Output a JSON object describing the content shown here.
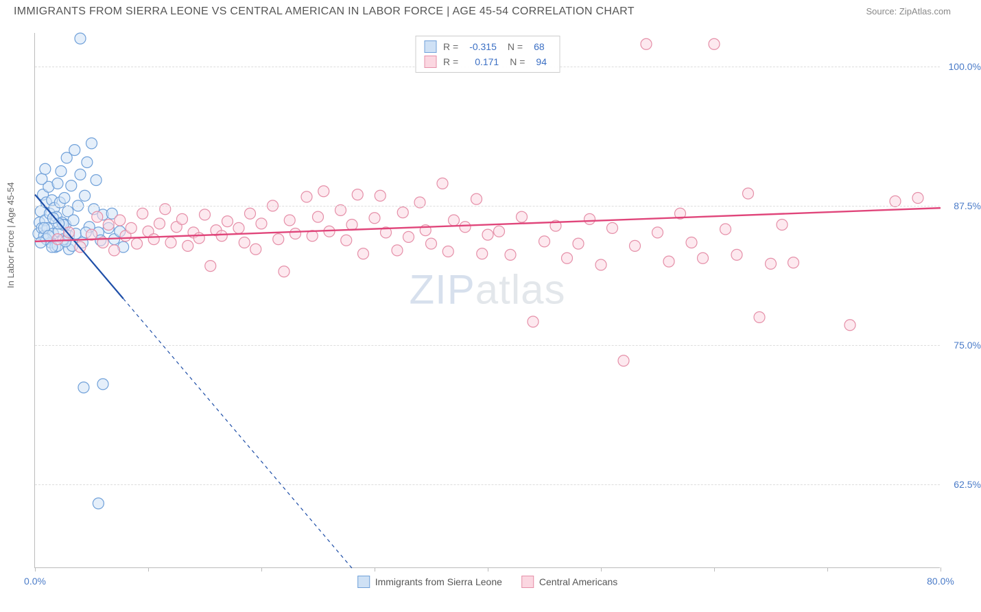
{
  "header": {
    "title": "IMMIGRANTS FROM SIERRA LEONE VS CENTRAL AMERICAN IN LABOR FORCE | AGE 45-54 CORRELATION CHART",
    "source": "Source: ZipAtlas.com"
  },
  "chart": {
    "type": "scatter",
    "ylabel": "In Labor Force | Age 45-54",
    "xlim": [
      0,
      80
    ],
    "ylim": [
      55,
      103
    ],
    "xtick_start": 0,
    "xtick_end": 80,
    "xtick_step_major": 10,
    "x_label_min": "0.0%",
    "x_label_max": "80.0%",
    "yticks": [
      {
        "v": 62.5,
        "label": "62.5%"
      },
      {
        "v": 75.0,
        "label": "75.0%"
      },
      {
        "v": 87.5,
        "label": "87.5%"
      },
      {
        "v": 100.0,
        "label": "100.0%"
      }
    ],
    "grid_color": "#dddddd",
    "axis_color": "#bbbbbb",
    "background_color": "#ffffff",
    "tick_label_color": "#4a7bc8",
    "marker_radius": 8,
    "marker_stroke_width": 1.2,
    "watermark": "ZIPatlas",
    "series": [
      {
        "id": "sierra_leone",
        "name": "Immigrants from Sierra Leone",
        "fill": "#cfe1f5",
        "stroke": "#6fa0d9",
        "fill_opacity": 0.55,
        "line_color": "#1f4fa8",
        "line_width": 2.2,
        "dash_extrapolate": "5,5",
        "R": "-0.315",
        "N": "68",
        "trend": {
          "x1": 0,
          "y1": 88.5,
          "x2": 28,
          "y2": 55,
          "solid_until_x": 7.8
        },
        "points": [
          [
            0.3,
            85
          ],
          [
            0.4,
            86
          ],
          [
            0.5,
            87
          ],
          [
            0.6,
            85.5
          ],
          [
            0.7,
            88.5
          ],
          [
            0.8,
            84.8
          ],
          [
            0.9,
            86.2
          ],
          [
            1.0,
            87.8
          ],
          [
            1.1,
            85.5
          ],
          [
            1.2,
            89.2
          ],
          [
            1.3,
            86.8
          ],
          [
            1.4,
            84.2
          ],
          [
            1.5,
            88
          ],
          [
            1.6,
            85
          ],
          [
            1.7,
            87.3
          ],
          [
            1.8,
            83.8
          ],
          [
            1.9,
            86.5
          ],
          [
            2.0,
            89.5
          ],
          [
            2.1,
            85.2
          ],
          [
            2.2,
            87.8
          ],
          [
            2.3,
            90.6
          ],
          [
            2.4,
            86
          ],
          [
            2.5,
            84.5
          ],
          [
            2.6,
            88.2
          ],
          [
            2.7,
            85.8
          ],
          [
            2.8,
            91.8
          ],
          [
            2.9,
            87
          ],
          [
            3.0,
            84.8
          ],
          [
            3.2,
            89.3
          ],
          [
            3.4,
            86.2
          ],
          [
            3.5,
            92.5
          ],
          [
            3.6,
            85
          ],
          [
            3.8,
            87.5
          ],
          [
            4.0,
            90.3
          ],
          [
            4.2,
            84.2
          ],
          [
            4.4,
            88.4
          ],
          [
            4.6,
            91.4
          ],
          [
            4.8,
            85.6
          ],
          [
            5.0,
            93.1
          ],
          [
            5.2,
            87.2
          ],
          [
            5.4,
            89.8
          ],
          [
            5.6,
            85.1
          ],
          [
            5.8,
            84.4
          ],
          [
            6.0,
            86.7
          ],
          [
            2.0,
            83.9
          ],
          [
            2.5,
            85.8
          ],
          [
            3.0,
            83.6
          ],
          [
            1.0,
            84.5
          ],
          [
            1.5,
            83.8
          ],
          [
            0.5,
            84.2
          ],
          [
            0.8,
            85.5
          ],
          [
            1.2,
            84.8
          ],
          [
            6.5,
            85.5
          ],
          [
            6.8,
            86.8
          ],
          [
            7.0,
            84.5
          ],
          [
            7.5,
            85.2
          ],
          [
            7.8,
            83.8
          ],
          [
            4.5,
            85.1
          ],
          [
            3.3,
            83.9
          ],
          [
            2.7,
            84.3
          ],
          [
            2.1,
            85.9
          ],
          [
            1.6,
            86.4
          ],
          [
            4.0,
            102.5
          ],
          [
            4.3,
            71.2
          ],
          [
            6.0,
            71.5
          ],
          [
            5.6,
            60.8
          ],
          [
            0.6,
            89.9
          ],
          [
            0.9,
            90.8
          ]
        ]
      },
      {
        "id": "central_american",
        "name": "Central Americans",
        "fill": "#fbd7e1",
        "stroke": "#e58fa8",
        "fill_opacity": 0.55,
        "line_color": "#e0457a",
        "line_width": 2.4,
        "R": "0.171",
        "N": "94",
        "trend": {
          "x1": 0,
          "y1": 84.3,
          "x2": 80,
          "y2": 87.3,
          "solid_until_x": 80
        },
        "points": [
          [
            2,
            84.5
          ],
          [
            3,
            85.1
          ],
          [
            4,
            83.8
          ],
          [
            5,
            84.9
          ],
          [
            5.5,
            86.5
          ],
          [
            6,
            84.2
          ],
          [
            6.5,
            85.8
          ],
          [
            7,
            83.5
          ],
          [
            7.5,
            86.2
          ],
          [
            8,
            84.8
          ],
          [
            8.5,
            85.5
          ],
          [
            9,
            84.1
          ],
          [
            9.5,
            86.8
          ],
          [
            10,
            85.2
          ],
          [
            10.5,
            84.5
          ],
          [
            11,
            85.9
          ],
          [
            11.5,
            87.2
          ],
          [
            12,
            84.2
          ],
          [
            12.5,
            85.6
          ],
          [
            13,
            86.3
          ],
          [
            13.5,
            83.9
          ],
          [
            14,
            85.1
          ],
          [
            14.5,
            84.6
          ],
          [
            15,
            86.7
          ],
          [
            15.5,
            82.1
          ],
          [
            16,
            85.3
          ],
          [
            16.5,
            84.8
          ],
          [
            17,
            86.1
          ],
          [
            18,
            85.5
          ],
          [
            18.5,
            84.2
          ],
          [
            19,
            86.8
          ],
          [
            19.5,
            83.6
          ],
          [
            20,
            85.9
          ],
          [
            21,
            87.5
          ],
          [
            21.5,
            84.5
          ],
          [
            22,
            81.6
          ],
          [
            22.5,
            86.2
          ],
          [
            23,
            85
          ],
          [
            24,
            88.3
          ],
          [
            24.5,
            84.8
          ],
          [
            25,
            86.5
          ],
          [
            25.5,
            88.8
          ],
          [
            26,
            85.2
          ],
          [
            27,
            87.1
          ],
          [
            27.5,
            84.4
          ],
          [
            28,
            85.8
          ],
          [
            28.5,
            88.5
          ],
          [
            29,
            83.2
          ],
          [
            30,
            86.4
          ],
          [
            30.5,
            88.4
          ],
          [
            31,
            85.1
          ],
          [
            32,
            83.5
          ],
          [
            32.5,
            86.9
          ],
          [
            33,
            84.7
          ],
          [
            34,
            87.8
          ],
          [
            34.5,
            85.3
          ],
          [
            35,
            84.1
          ],
          [
            36,
            89.5
          ],
          [
            36.5,
            83.4
          ],
          [
            37,
            86.2
          ],
          [
            38,
            85.6
          ],
          [
            39,
            88.1
          ],
          [
            39.5,
            83.2
          ],
          [
            40,
            84.9
          ],
          [
            41,
            85.2
          ],
          [
            42,
            83.1
          ],
          [
            43,
            86.5
          ],
          [
            44,
            77.1
          ],
          [
            45,
            84.3
          ],
          [
            46,
            85.7
          ],
          [
            47,
            82.8
          ],
          [
            48,
            84.1
          ],
          [
            49,
            86.3
          ],
          [
            50,
            82.2
          ],
          [
            51,
            85.5
          ],
          [
            52,
            73.6
          ],
          [
            53,
            83.9
          ],
          [
            54,
            102
          ],
          [
            55,
            85.1
          ],
          [
            56,
            82.5
          ],
          [
            57,
            86.8
          ],
          [
            58,
            84.2
          ],
          [
            59,
            82.8
          ],
          [
            60,
            102
          ],
          [
            61,
            85.4
          ],
          [
            62,
            83.1
          ],
          [
            63,
            88.6
          ],
          [
            64,
            77.5
          ],
          [
            65,
            82.3
          ],
          [
            66,
            85.8
          ],
          [
            67,
            82.4
          ],
          [
            72,
            76.8
          ],
          [
            76,
            87.9
          ],
          [
            78,
            88.2
          ]
        ]
      }
    ],
    "legend_bottom": [
      {
        "series": 0
      },
      {
        "series": 1
      }
    ]
  }
}
